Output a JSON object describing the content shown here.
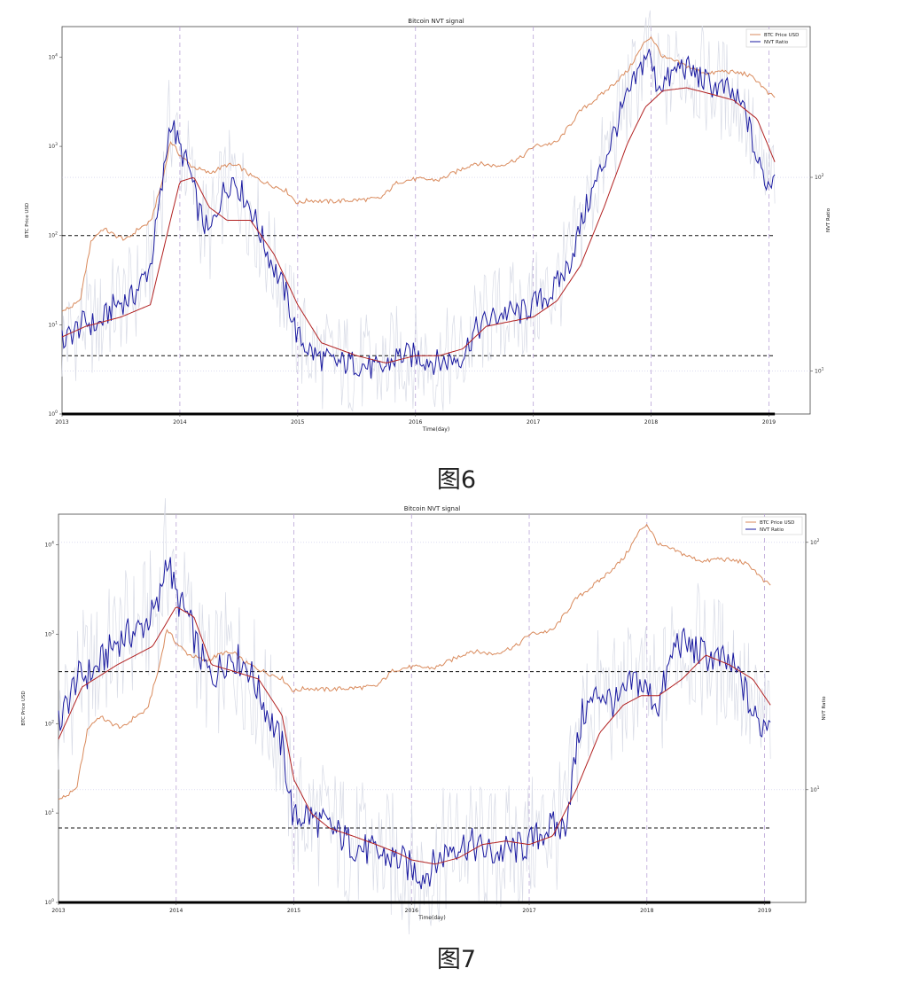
{
  "charts": [
    {
      "caption": "图6",
      "chart_data": {
        "type": "line",
        "title": "Bitcoin NVT signal",
        "xlabel": "Time(day)",
        "ylabel_left": "BTC Price USD",
        "ylabel_right": "NVT Ratio",
        "x_ticks": [
          "2013",
          "2014",
          "2015",
          "2016",
          "2017",
          "2018",
          "2019"
        ],
        "y_left_ticks": [
          "10^0",
          "10^1",
          "10^2",
          "10^3",
          "10^4"
        ],
        "y_right_ticks": [
          "10^1",
          "10^2"
        ],
        "y_left_scale": "log",
        "y_right_scale": "log",
        "xlim": [
          2013.0,
          2019.35
        ],
        "y_left_lim": [
          1,
          22000
        ],
        "y_right_lim": [
          6,
          600
        ],
        "legend_position": "top-right",
        "legend": [
          "BTC Price USD",
          "NVT Ratio"
        ],
        "colors": {
          "price": "#d98a5c",
          "nvt": "#1a1aa0",
          "ma": "#b22222",
          "raw": "#d8dbe6",
          "hline": "#111111",
          "vline": "#b9a3d6"
        },
        "hlines_right": [
          50,
          12
        ],
        "vlines": [
          2014.0,
          2015.0,
          2016.0,
          2017.0,
          2018.0,
          2019.0
        ],
        "series": [
          {
            "name": "BTC Price USD",
            "x": [
              2013.0,
              2013.15,
              2013.25,
              2013.35,
              2013.45,
              2013.55,
              2013.65,
              2013.75,
              2013.85,
              2013.92,
              2014.0,
              2014.1,
              2014.25,
              2014.4,
              2014.5,
              2014.6,
              2014.75,
              2014.9,
              2015.0,
              2015.1,
              2015.25,
              2015.5,
              2015.7,
              2015.85,
              2016.0,
              2016.2,
              2016.5,
              2016.7,
              2016.9,
              2017.0,
              2017.2,
              2017.4,
              2017.6,
              2017.8,
              2017.95,
              2018.0,
              2018.1,
              2018.25,
              2018.4,
              2018.5,
              2018.6,
              2018.8,
              2018.9,
              2019.0,
              2019.05
            ],
            "values": [
              14,
              18,
              90,
              120,
              100,
              90,
              120,
              140,
              400,
              1150,
              800,
              600,
              500,
              620,
              600,
              470,
              380,
              320,
              230,
              250,
              240,
              250,
              260,
              400,
              430,
              420,
              650,
              600,
              750,
              1000,
              1100,
              2500,
              4000,
              7000,
              15000,
              17000,
              10000,
              8500,
              7000,
              6500,
              7000,
              6500,
              5500,
              3800,
              3600
            ]
          },
          {
            "name": "NVT Ratio",
            "x": [
              2013.0,
              2013.1,
              2013.2,
              2013.3,
              2013.45,
              2013.6,
              2013.75,
              2013.85,
              2013.92,
              2014.0,
              2014.08,
              2014.15,
              2014.25,
              2014.35,
              2014.45,
              2014.6,
              2014.75,
              2014.9,
              2015.0,
              2015.15,
              2015.3,
              2015.5,
              2015.7,
              2015.85,
              2016.0,
              2016.2,
              2016.4,
              2016.5,
              2016.6,
              2016.75,
              2016.9,
              2017.0,
              2017.15,
              2017.3,
              2017.45,
              2017.6,
              2017.75,
              2017.9,
              2017.97,
              2018.05,
              2018.15,
              2018.25,
              2018.35,
              2018.5,
              2018.65,
              2018.8,
              2018.9,
              2019.0,
              2019.05
            ],
            "values": [
              14,
              16,
              18,
              17,
              22,
              24,
              35,
              90,
              200,
              140,
              110,
              70,
              50,
              80,
              100,
              70,
              40,
              25,
              15,
              12,
              11,
              11,
              10,
              12,
              12,
              11,
              12,
              16,
              18,
              20,
              20,
              22,
              25,
              35,
              70,
              120,
              220,
              350,
              450,
              300,
              320,
              380,
              350,
              300,
              280,
              220,
              120,
              90,
              110
            ]
          },
          {
            "name": "NVT moving average",
            "x": [
              2013.0,
              2013.2,
              2013.5,
              2013.75,
              2013.92,
              2014.0,
              2014.12,
              2014.25,
              2014.4,
              2014.6,
              2014.8,
              2015.0,
              2015.2,
              2015.5,
              2015.75,
              2016.0,
              2016.2,
              2016.4,
              2016.6,
              2016.8,
              2017.0,
              2017.2,
              2017.4,
              2017.6,
              2017.8,
              2017.95,
              2018.1,
              2018.3,
              2018.5,
              2018.7,
              2018.9,
              2019.05
            ],
            "values": [
              15,
              17,
              19,
              22,
              60,
              95,
              100,
              70,
              60,
              60,
              40,
              22,
              14,
              12,
              11,
              12,
              12,
              13,
              17,
              18,
              19,
              23,
              35,
              70,
              150,
              230,
              280,
              290,
              270,
              250,
              200,
              120
            ]
          }
        ]
      }
    },
    {
      "caption": "图7",
      "chart_data": {
        "type": "line",
        "title": "Bitcoin NVT signal",
        "xlabel": "Time(day)",
        "ylabel_left": "BTC Price USD",
        "ylabel_right": "NVT Ratio",
        "x_ticks": [
          "2013",
          "2014",
          "2015",
          "2016",
          "2017",
          "2018",
          "2019"
        ],
        "y_left_ticks": [
          "10^0",
          "10^1",
          "10^2",
          "10^3",
          "10^4"
        ],
        "y_right_ticks": [
          "10^1",
          "10^2"
        ],
        "y_left_scale": "log",
        "y_right_scale": "log",
        "xlim": [
          2013.0,
          2019.35
        ],
        "y_left_lim": [
          1,
          22000
        ],
        "y_right_lim": [
          3.5,
          130
        ],
        "legend_position": "top-right",
        "legend": [
          "BTC Price USD",
          "NVT Ratio"
        ],
        "colors": {
          "price": "#d98a5c",
          "nvt": "#1a1aa0",
          "ma": "#b22222",
          "raw": "#d8dbe6",
          "hline": "#111111",
          "vline": "#b9a3d6"
        },
        "hlines_right": [
          30,
          7
        ],
        "vlines": [
          2014.0,
          2015.0,
          2016.0,
          2017.0,
          2018.0,
          2019.0
        ],
        "series": [
          {
            "name": "BTC Price USD",
            "x": [
              2013.0,
              2013.15,
              2013.25,
              2013.35,
              2013.45,
              2013.55,
              2013.65,
              2013.75,
              2013.85,
              2013.92,
              2014.0,
              2014.1,
              2014.25,
              2014.4,
              2014.5,
              2014.6,
              2014.75,
              2014.9,
              2015.0,
              2015.1,
              2015.25,
              2015.5,
              2015.7,
              2015.85,
              2016.0,
              2016.2,
              2016.5,
              2016.7,
              2016.9,
              2017.0,
              2017.2,
              2017.4,
              2017.6,
              2017.8,
              2017.95,
              2018.0,
              2018.1,
              2018.25,
              2018.4,
              2018.5,
              2018.6,
              2018.8,
              2018.9,
              2019.0,
              2019.05
            ],
            "values": [
              14,
              18,
              90,
              120,
              100,
              90,
              120,
              140,
              400,
              1150,
              800,
              600,
              500,
              620,
              600,
              470,
              380,
              320,
              230,
              250,
              240,
              250,
              260,
              400,
              430,
              420,
              650,
              600,
              750,
              1000,
              1100,
              2500,
              4000,
              7000,
              15000,
              17000,
              10000,
              8500,
              7000,
              6500,
              7000,
              6500,
              5500,
              3800,
              3600
            ]
          },
          {
            "name": "NVT Ratio",
            "x": [
              2013.0,
              2013.15,
              2013.3,
              2013.5,
              2013.7,
              2013.85,
              2013.92,
              2014.0,
              2014.1,
              2014.2,
              2014.3,
              2014.45,
              2014.6,
              2014.75,
              2014.9,
              2015.0,
              2015.1,
              2015.3,
              2015.5,
              2015.7,
              2015.9,
              2016.0,
              2016.1,
              2016.2,
              2016.35,
              2016.5,
              2016.7,
              2016.9,
              2017.0,
              2017.15,
              2017.3,
              2017.45,
              2017.6,
              2017.75,
              2017.9,
              2018.0,
              2018.1,
              2018.25,
              2018.35,
              2018.5,
              2018.7,
              2018.8,
              2018.9,
              2018.97,
              2019.05
            ],
            "values": [
              18,
              28,
              30,
              40,
              45,
              55,
              90,
              60,
              50,
              35,
              28,
              35,
              32,
              22,
              15,
              7.5,
              8,
              7,
              6,
              5.5,
              5.2,
              4.8,
              4.5,
              5,
              6,
              6,
              5.5,
              5.8,
              6,
              7,
              7,
              20,
              25,
              22,
              28,
              25,
              22,
              40,
              38,
              35,
              32,
              28,
              20,
              18,
              20
            ]
          },
          {
            "name": "NVT moving average",
            "x": [
              2013.0,
              2013.2,
              2013.5,
              2013.8,
              2014.0,
              2014.15,
              2014.3,
              2014.5,
              2014.7,
              2014.9,
              2015.0,
              2015.15,
              2015.3,
              2015.5,
              2015.7,
              2015.9,
              2016.0,
              2016.2,
              2016.4,
              2016.6,
              2016.8,
              2017.0,
              2017.2,
              2017.4,
              2017.6,
              2017.8,
              2017.95,
              2018.1,
              2018.3,
              2018.5,
              2018.7,
              2018.9,
              2019.05
            ],
            "values": [
              16,
              26,
              32,
              38,
              55,
              50,
              32,
              30,
              28,
              20,
              11,
              8,
              7,
              6.5,
              6,
              5.5,
              5.2,
              5,
              5.3,
              6,
              6.2,
              6,
              6.5,
              10,
              17,
              22,
              24,
              24,
              28,
              35,
              32,
              28,
              22
            ]
          }
        ]
      }
    }
  ]
}
